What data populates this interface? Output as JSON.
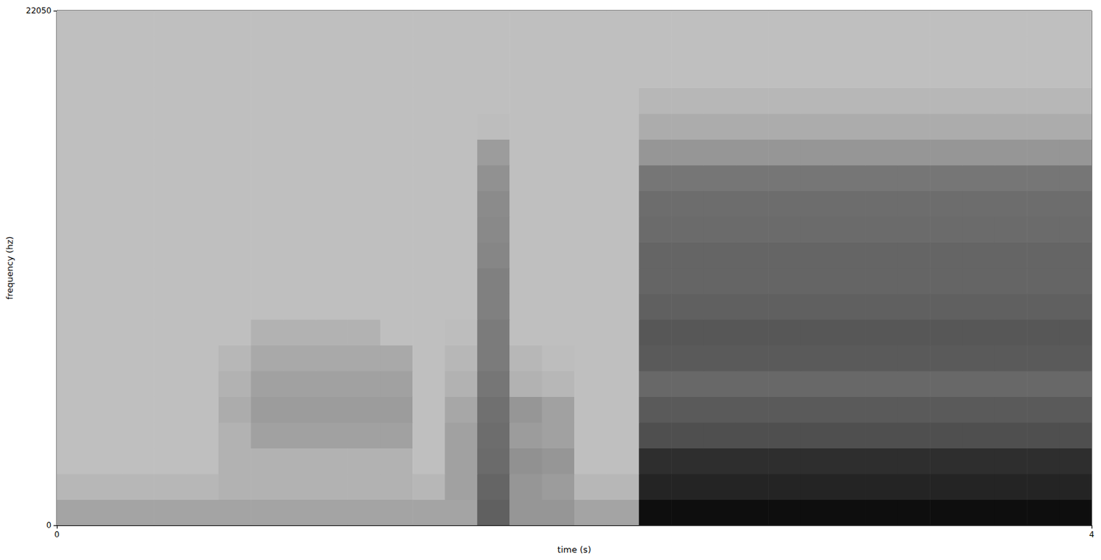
{
  "chart_data": {
    "type": "spectrogram",
    "x_label": "time (s)",
    "y_label": "frequency (hz)",
    "xlim": [
      0,
      4
    ],
    "xticks": [
      0,
      4
    ],
    "ylim": [
      0,
      22050
    ],
    "yticks": [
      0,
      22050
    ],
    "grid": false,
    "zlim": [
      20,
      95
    ],
    "x_edges": [
      0,
      0.125,
      0.25,
      0.375,
      0.5,
      0.625,
      0.75,
      0.875,
      1,
      1.125,
      1.25,
      1.375,
      1.5,
      1.625,
      1.75,
      1.875,
      2,
      2.125,
      2.25,
      2.375,
      2.5,
      2.625,
      2.75,
      2.875,
      3,
      3.125,
      3.25,
      3.375,
      3.5,
      3.625,
      3.75,
      3.875,
      4
    ],
    "y_edges": [
      0,
      1102.5,
      2205,
      3307.5,
      4410,
      5512.5,
      6615,
      7717.5,
      8820,
      9922.5,
      11025,
      12127.5,
      13230,
      14332.5,
      15435,
      16537.5,
      17640,
      18742.5,
      19845,
      20947.5,
      22050
    ],
    "cells": [
      [
        35,
        35,
        35,
        35,
        35,
        35,
        35,
        35,
        35,
        35,
        35,
        35,
        35,
        60,
        40,
        40,
        35,
        35,
        90,
        90,
        90,
        90,
        90,
        90,
        90,
        90,
        90,
        90,
        90,
        90,
        90,
        90
      ],
      [
        28,
        28,
        28,
        28,
        28,
        30,
        30,
        30,
        30,
        30,
        30,
        28,
        36,
        58,
        40,
        38,
        28,
        28,
        82,
        82,
        82,
        82,
        82,
        82,
        82,
        82,
        82,
        82,
        82,
        82,
        82,
        82
      ],
      [
        25,
        25,
        25,
        25,
        25,
        30,
        30,
        30,
        30,
        30,
        30,
        25,
        36,
        56,
        42,
        40,
        25,
        25,
        78,
        78,
        78,
        78,
        78,
        78,
        78,
        78,
        78,
        78,
        78,
        78,
        78,
        78
      ],
      [
        25,
        25,
        25,
        25,
        25,
        30,
        36,
        36,
        36,
        36,
        36,
        25,
        36,
        55,
        38,
        36,
        25,
        25,
        66,
        66,
        66,
        66,
        66,
        66,
        66,
        66,
        66,
        66,
        66,
        66,
        66,
        66
      ],
      [
        25,
        25,
        25,
        25,
        25,
        32,
        38,
        38,
        38,
        38,
        38,
        25,
        34,
        54,
        40,
        36,
        25,
        25,
        62,
        62,
        62,
        62,
        62,
        62,
        62,
        62,
        62,
        62,
        62,
        62,
        62,
        62
      ],
      [
        25,
        25,
        25,
        25,
        25,
        30,
        36,
        36,
        36,
        36,
        36,
        25,
        30,
        52,
        30,
        28,
        25,
        25,
        57,
        57,
        57,
        57,
        57,
        57,
        57,
        57,
        57,
        57,
        57,
        57,
        57,
        57
      ],
      [
        25,
        25,
        25,
        25,
        25,
        28,
        33,
        33,
        33,
        33,
        33,
        25,
        28,
        50,
        28,
        26,
        25,
        25,
        62,
        62,
        62,
        62,
        62,
        62,
        62,
        62,
        62,
        62,
        62,
        62,
        62,
        62
      ],
      [
        25,
        25,
        25,
        25,
        25,
        25,
        30,
        30,
        30,
        30,
        25,
        25,
        26,
        50,
        25,
        25,
        25,
        25,
        63,
        63,
        63,
        63,
        63,
        63,
        63,
        63,
        63,
        63,
        63,
        63,
        63,
        63
      ],
      [
        25,
        25,
        25,
        25,
        25,
        25,
        25,
        25,
        25,
        25,
        25,
        25,
        25,
        48,
        25,
        25,
        25,
        25,
        60,
        60,
        60,
        60,
        60,
        60,
        60,
        60,
        60,
        60,
        60,
        60,
        60,
        60
      ],
      [
        25,
        25,
        25,
        25,
        25,
        25,
        25,
        25,
        25,
        25,
        25,
        25,
        25,
        48,
        25,
        25,
        25,
        25,
        58,
        58,
        58,
        58,
        58,
        58,
        58,
        58,
        58,
        58,
        58,
        58,
        58,
        58
      ],
      [
        25,
        25,
        25,
        25,
        25,
        25,
        25,
        25,
        25,
        25,
        25,
        25,
        25,
        46,
        25,
        25,
        25,
        25,
        58,
        58,
        58,
        58,
        58,
        58,
        58,
        58,
        58,
        58,
        58,
        58,
        58,
        58
      ],
      [
        25,
        25,
        25,
        25,
        25,
        25,
        25,
        25,
        25,
        25,
        25,
        25,
        25,
        45,
        25,
        25,
        25,
        25,
        56,
        56,
        56,
        56,
        56,
        56,
        56,
        56,
        56,
        56,
        56,
        56,
        56,
        56
      ],
      [
        25,
        25,
        25,
        25,
        25,
        25,
        25,
        25,
        25,
        25,
        25,
        25,
        25,
        44,
        25,
        25,
        25,
        25,
        55,
        55,
        55,
        55,
        55,
        55,
        55,
        55,
        55,
        55,
        55,
        55,
        55,
        55
      ],
      [
        25,
        25,
        25,
        25,
        25,
        25,
        25,
        25,
        25,
        25,
        25,
        25,
        25,
        42,
        25,
        25,
        25,
        25,
        52,
        52,
        52,
        52,
        52,
        52,
        52,
        52,
        52,
        52,
        52,
        52,
        52,
        52
      ],
      [
        25,
        25,
        25,
        25,
        25,
        25,
        25,
        25,
        25,
        25,
        25,
        25,
        25,
        38,
        25,
        25,
        25,
        25,
        40,
        40,
        40,
        40,
        40,
        40,
        40,
        40,
        40,
        40,
        40,
        40,
        40,
        40
      ],
      [
        25,
        25,
        25,
        25,
        25,
        25,
        25,
        25,
        25,
        25,
        25,
        25,
        25,
        26,
        25,
        25,
        25,
        25,
        32,
        32,
        32,
        32,
        32,
        32,
        32,
        32,
        32,
        32,
        32,
        32,
        32,
        32
      ],
      [
        25,
        25,
        25,
        25,
        25,
        25,
        25,
        25,
        25,
        25,
        25,
        25,
        25,
        25,
        25,
        25,
        25,
        25,
        28,
        28,
        28,
        28,
        28,
        28,
        28,
        28,
        28,
        28,
        28,
        28,
        28,
        28
      ],
      [
        25,
        25,
        25,
        25,
        25,
        25,
        25,
        25,
        25,
        25,
        25,
        25,
        25,
        25,
        25,
        25,
        25,
        25,
        25,
        25,
        25,
        25,
        25,
        25,
        25,
        25,
        25,
        25,
        25,
        25,
        25,
        25
      ],
      [
        25,
        25,
        25,
        25,
        25,
        25,
        25,
        25,
        25,
        25,
        25,
        25,
        25,
        25,
        25,
        25,
        25,
        25,
        25,
        25,
        25,
        25,
        25,
        25,
        25,
        25,
        25,
        25,
        25,
        25,
        25,
        25
      ],
      [
        25,
        25,
        25,
        25,
        25,
        25,
        25,
        25,
        25,
        25,
        25,
        25,
        25,
        25,
        25,
        25,
        25,
        25,
        25,
        25,
        25,
        25,
        25,
        25,
        25,
        25,
        25,
        25,
        25,
        25,
        25,
        25
      ]
    ]
  }
}
